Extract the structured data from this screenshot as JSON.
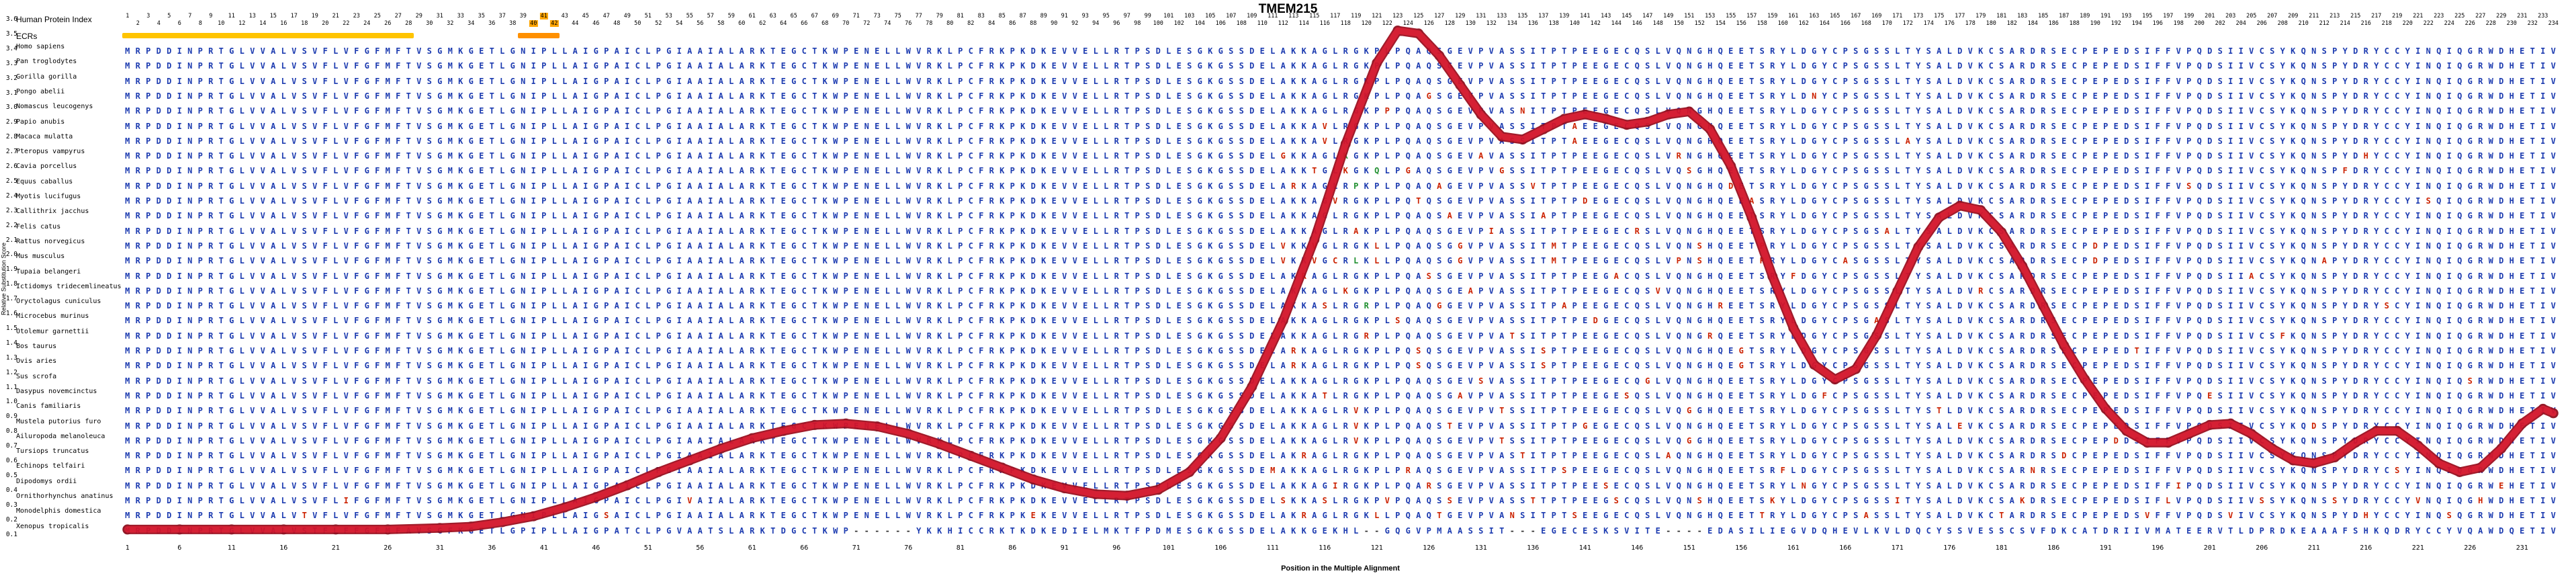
{
  "header": {
    "title": "TMEM215"
  },
  "axes": {
    "x_label": "Position in the Multiple Alignment",
    "y_label": "Relative Substitution Score",
    "y_ticks": [
      "3.6",
      "3.5",
      "3.4",
      "3.3",
      "3.2",
      "3.1",
      "3.0",
      "2.9",
      "2.8",
      "2.7",
      "2.6",
      "2.5",
      "2.4",
      "2.3",
      "2.2",
      "2.1",
      "2.0",
      "1.9",
      "1.8",
      "1.7",
      "1.6",
      "1.5",
      "1.4",
      "1.3",
      "1.2",
      "1.1",
      "1.0",
      "0.9",
      "0.8",
      "0.7",
      "0.6",
      "0.5",
      "0.4",
      "0.3",
      "0.2",
      "0.1"
    ],
    "x_tick_start": 1,
    "x_tick_step": 5
  },
  "tracks": {
    "human_protein_index_label": "Human Protein Index",
    "ecrs_label": "ECRs",
    "ecr_regions": [
      {
        "start": 1,
        "end": 28,
        "color": "#ffc400"
      },
      {
        "start": 39,
        "end": 42,
        "color": "#ff9000"
      }
    ],
    "highlighted_numbers": [
      40,
      41,
      42
    ]
  },
  "alignment": {
    "length": 234,
    "reference": "Homo sapiens",
    "colors": {
      "base": "#1c3bb0",
      "diff": "#cc2200",
      "alt": "#1f8f2f",
      "gap": "#333333"
    },
    "ref_seq": "MRPDDINPRTGLVVALVSVFLVFGFMFTVSGMKGETLGNIPLLAIGPAICLPGIAAIALARKTEGCTKWPENELLWVRKLPCFRKPKDKEVVELLRTPSDLESGKGSSDELAKKAGLRGKPLPQAQSGEVPVASSITPTPEEGECQSLVQNGHQEETSRYLDGYCPSGSSLTYSALDVKCSARDRSECPEPEDSIFFVPQDSIIVCSYKQNSPYDRYCCYINQIQGRWDHETIV",
    "species": [
      {
        "name": "Homo sapiens",
        "mutations": {}
      },
      {
        "name": "Pan troglodytes",
        "mutations": {}
      },
      {
        "name": "Gorilla gorilla",
        "mutations": {}
      },
      {
        "name": "Pongo abelii",
        "mutations": {
          "126": "G",
          "163": "N"
        }
      },
      {
        "name": "Nomascus leucogenys",
        "mutations": {
          "122": "P",
          "135": "N"
        }
      },
      {
        "name": "Papio anubis",
        "mutations": {
          "116": "V",
          "140": "A"
        }
      },
      {
        "name": "Macaca mulatta",
        "mutations": {
          "116": "V",
          "140": "A",
          "172": "A"
        }
      },
      {
        "name": "Pteropus vampyrus",
        "mutations": {
          "112": "G",
          "118": "k",
          "131": "A",
          "150": "R",
          "216": "H"
        }
      },
      {
        "name": "Cavia porcellus",
        "mutations": {
          "115": "T",
          "118": "K",
          "121": "q",
          "124": "G",
          "133": "G",
          "151": "S",
          "214": "F"
        }
      },
      {
        "name": "Equus caballus",
        "mutations": {
          "113": "R",
          "119": "p",
          "127": "A",
          "136": "V",
          "155": "D",
          "199": "S"
        }
      },
      {
        "name": "Myotis lucifugus",
        "mutations": {
          "117": "V",
          "125": "T",
          "141": "D",
          "157": "A",
          "222": "S"
        }
      },
      {
        "name": "Callithrix jacchus",
        "mutations": {
          "128": "A",
          "137": "A"
        }
      },
      {
        "name": "Felis catus",
        "mutations": {
          "119": "A",
          "132": "I",
          "146": "R",
          "170": "A"
        }
      },
      {
        "name": "Rattus norvegicus",
        "mutations": {
          "112": "V",
          "115": "V",
          "121": "L",
          "129": "G",
          "138": "M",
          "152": "S",
          "158": "P",
          "190": "D"
        }
      },
      {
        "name": "Mus musculus",
        "mutations": {
          "112": "V",
          "115": "V",
          "117": "C",
          "119": "l",
          "121": "L",
          "129": "G",
          "138": "M",
          "150": "P",
          "152": "S",
          "158": "P",
          "166": "A",
          "190": "D",
          "212": "A"
        }
      },
      {
        "name": "Tupaia belangeri",
        "mutations": {
          "114": "R",
          "126": "S",
          "144": "A",
          "161": "F",
          "205": "A"
        }
      },
      {
        "name": "Ictidomys tridecemlineatus",
        "mutations": {
          "118": "K",
          "130": "A",
          "148": "V",
          "179": "R"
        }
      },
      {
        "name": "Oryctolagus cuniculus",
        "mutations": {
          "116": "S",
          "120": "r",
          "127": "G",
          "139": "A",
          "154": "R",
          "218": "S"
        }
      },
      {
        "name": "Microcebus murinus",
        "mutations": {
          "123": "S",
          "142": "D",
          "169": "A"
        }
      },
      {
        "name": "Otolemur garnettii",
        "mutations": {
          "120": "R",
          "134": "T",
          "153": "R",
          "208": "F"
        }
      },
      {
        "name": "Bos taurus",
        "mutations": {
          "113": "R",
          "125": "S",
          "137": "S",
          "156": "G",
          "194": "T"
        }
      },
      {
        "name": "Ovis aries",
        "mutations": {
          "113": "R",
          "125": "S",
          "137": "S",
          "156": "G"
        }
      },
      {
        "name": "Sus scrofa",
        "mutations": {
          "118": "R",
          "131": "S",
          "147": "G",
          "226": "S"
        }
      },
      {
        "name": "Dasypus novemcinctus",
        "mutations": {
          "116": "T",
          "129": "A",
          "145": "S",
          "164": "F",
          "201": "E"
        }
      },
      {
        "name": "Canis familiaris",
        "mutations": {
          "119": "V",
          "133": "T",
          "151": "G",
          "175": "T"
        }
      },
      {
        "name": "Mustela putorius furo",
        "mutations": {
          "119": "V",
          "128": "T",
          "141": "G",
          "177": "E",
          "211": "D"
        }
      },
      {
        "name": "Ailuropoda melanoleuca",
        "mutations": {
          "119": "V",
          "133": "T",
          "151": "G",
          "192": "D"
        }
      },
      {
        "name": "Tursiops truncatus",
        "mutations": {
          "114": "R",
          "135": "T",
          "149": "A",
          "187": "D"
        }
      },
      {
        "name": "Echinops telfairi",
        "mutations": {
          "111": "M",
          "124": "R",
          "139": "S",
          "160": "F",
          "184": "N",
          "219": "S"
        }
      },
      {
        "name": "Dipodomys ordii",
        "mutations": {
          "117": "I",
          "126": "R",
          "143": "S",
          "162": "N",
          "198": "I",
          "229": "E"
        }
      },
      {
        "name": "Ornithorhynchus anatinus",
        "mutations": {
          "22": "I",
          "55": "V",
          "112": "S",
          "116": "S",
          "122": "V",
          "128": "S",
          "136": "T",
          "144": "S",
          "152": "S",
          "159": "K",
          "171": "I",
          "183": "K",
          "197": "L",
          "206": "S",
          "213": "S",
          "221": "V",
          "227": "H"
        }
      },
      {
        "name": "Monodelphis domestica",
        "mutations": {
          "18": "T",
          "47": "S",
          "88": "E",
          "114": "R",
          "121": "L",
          "127": "T",
          "134": "N",
          "140": "S",
          "147": "S",
          "158": "T",
          "168": "A",
          "181": "T",
          "195": "V",
          "203": "V",
          "216": "H",
          "224": "S"
        }
      },
      {
        "name": "Xenopus tropicalis",
        "seq": "MRPDDINPRTGLVVALVSTFLFFGFMFAVSGFKGETLGPIPLLAIGPATCLPGVAATSLARKTDGCTKWP------YKKHICCRKTKDKEDIELMKTFPDMESGKGSSDELAKKGEKHL--GQGVPMAASSIT---EGECESKSVITE----EDASILIEGVDQHEVLKVLDQCYSSVESSCSVFDKCATDRIIVMATEERVTLDPRDKEAAAFSHKQDRYCCYVQAWDQETIV"
      }
    ]
  },
  "chart_data": {
    "type": "line",
    "title": "TMEM215",
    "xlabel": "Position in the Multiple Alignment",
    "ylabel": "Relative Substitution Score",
    "xlim": [
      1,
      234
    ],
    "ylim": [
      0.1,
      3.6
    ],
    "grid": false,
    "legend": "none",
    "line_color": "#d3152a",
    "marker_color": "#8f0f1e",
    "outline_color": "#9d1020",
    "points": [
      [
        1,
        0.13
      ],
      [
        6,
        0.13
      ],
      [
        11,
        0.13
      ],
      [
        16,
        0.13
      ],
      [
        21,
        0.13
      ],
      [
        26,
        0.13
      ],
      [
        31,
        0.14
      ],
      [
        34,
        0.15
      ],
      [
        37,
        0.18
      ],
      [
        40,
        0.22
      ],
      [
        43,
        0.28
      ],
      [
        46,
        0.35
      ],
      [
        49,
        0.43
      ],
      [
        52,
        0.52
      ],
      [
        55,
        0.6
      ],
      [
        58,
        0.68
      ],
      [
        61,
        0.75
      ],
      [
        64,
        0.8
      ],
      [
        67,
        0.84
      ],
      [
        70,
        0.85
      ],
      [
        73,
        0.83
      ],
      [
        76,
        0.78
      ],
      [
        79,
        0.71
      ],
      [
        82,
        0.63
      ],
      [
        85,
        0.55
      ],
      [
        88,
        0.47
      ],
      [
        91,
        0.41
      ],
      [
        94,
        0.37
      ],
      [
        97,
        0.36
      ],
      [
        100,
        0.4
      ],
      [
        103,
        0.52
      ],
      [
        106,
        0.75
      ],
      [
        109,
        1.1
      ],
      [
        112,
        1.55
      ],
      [
        115,
        2.1
      ],
      [
        118,
        2.75
      ],
      [
        121,
        3.3
      ],
      [
        123,
        3.52
      ],
      [
        125,
        3.5
      ],
      [
        127,
        3.35
      ],
      [
        129,
        3.15
      ],
      [
        131,
        2.95
      ],
      [
        133,
        2.8
      ],
      [
        135,
        2.78
      ],
      [
        137,
        2.85
      ],
      [
        139,
        2.92
      ],
      [
        141,
        2.95
      ],
      [
        143,
        2.92
      ],
      [
        145,
        2.88
      ],
      [
        147,
        2.9
      ],
      [
        149,
        2.95
      ],
      [
        151,
        2.97
      ],
      [
        153,
        2.85
      ],
      [
        155,
        2.6
      ],
      [
        157,
        2.25
      ],
      [
        159,
        1.85
      ],
      [
        161,
        1.5
      ],
      [
        163,
        1.25
      ],
      [
        165,
        1.15
      ],
      [
        167,
        1.22
      ],
      [
        169,
        1.45
      ],
      [
        171,
        1.75
      ],
      [
        173,
        2.05
      ],
      [
        175,
        2.25
      ],
      [
        177,
        2.33
      ],
      [
        179,
        2.3
      ],
      [
        181,
        2.15
      ],
      [
        183,
        1.92
      ],
      [
        185,
        1.65
      ],
      [
        187,
        1.38
      ],
      [
        189,
        1.15
      ],
      [
        191,
        0.95
      ],
      [
        193,
        0.8
      ],
      [
        195,
        0.72
      ],
      [
        197,
        0.72
      ],
      [
        199,
        0.78
      ],
      [
        201,
        0.84
      ],
      [
        203,
        0.85
      ],
      [
        205,
        0.78
      ],
      [
        207,
        0.68
      ],
      [
        209,
        0.6
      ],
      [
        211,
        0.58
      ],
      [
        213,
        0.62
      ],
      [
        215,
        0.72
      ],
      [
        217,
        0.8
      ],
      [
        219,
        0.8
      ],
      [
        221,
        0.7
      ],
      [
        223,
        0.58
      ],
      [
        225,
        0.52
      ],
      [
        227,
        0.55
      ],
      [
        229,
        0.68
      ],
      [
        231,
        0.85
      ],
      [
        233,
        0.95
      ],
      [
        234,
        0.92
      ]
    ]
  }
}
